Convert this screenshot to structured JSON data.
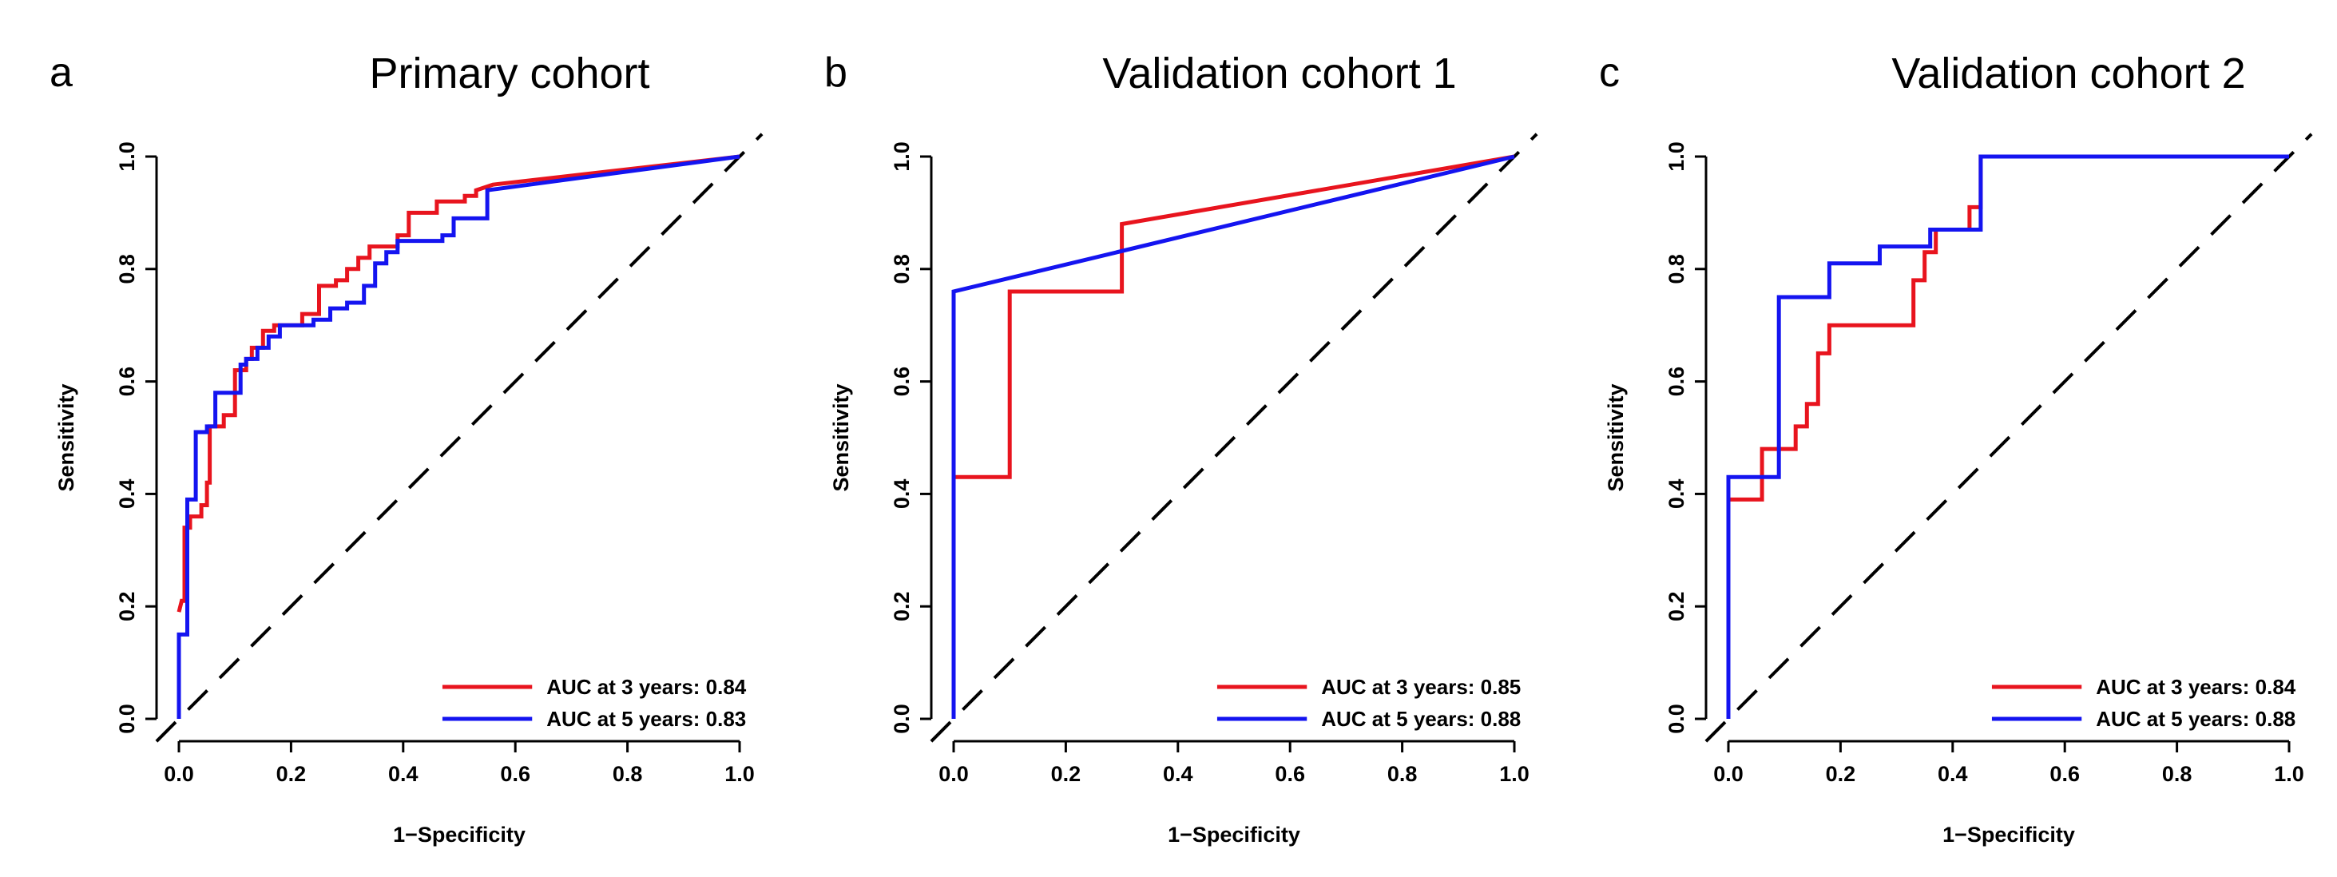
{
  "colors": {
    "red": "#e8141e",
    "blue": "#1414f0",
    "axis": "#000000",
    "diagonal": "#000000"
  },
  "chart_data": [
    {
      "type": "line",
      "panel_label": "a",
      "title": "Primary cohort",
      "xlabel": "1−Specificity",
      "ylabel": "Sensitivity",
      "xlim": [
        0,
        1
      ],
      "ylim": [
        0,
        1
      ],
      "x_ticks": [
        "0.0",
        "0.2",
        "0.4",
        "0.6",
        "0.8",
        "1.0"
      ],
      "y_ticks": [
        "0.0",
        "0.2",
        "0.4",
        "0.6",
        "0.8",
        "1.0"
      ],
      "legend_position": "bottom-right",
      "series": [
        {
          "name": "AUC at 3 years: 0.84",
          "color": "#e8141e",
          "points": [
            [
              0,
              0.19
            ],
            [
              0.005,
              0.21
            ],
            [
              0.01,
              0.21
            ],
            [
              0.01,
              0.34
            ],
            [
              0.02,
              0.34
            ],
            [
              0.02,
              0.36
            ],
            [
              0.04,
              0.36
            ],
            [
              0.04,
              0.38
            ],
            [
              0.05,
              0.38
            ],
            [
              0.05,
              0.42
            ],
            [
              0.055,
              0.42
            ],
            [
              0.055,
              0.52
            ],
            [
              0.08,
              0.52
            ],
            [
              0.08,
              0.54
            ],
            [
              0.1,
              0.54
            ],
            [
              0.1,
              0.62
            ],
            [
              0.12,
              0.62
            ],
            [
              0.12,
              0.64
            ],
            [
              0.13,
              0.64
            ],
            [
              0.13,
              0.66
            ],
            [
              0.15,
              0.66
            ],
            [
              0.15,
              0.69
            ],
            [
              0.17,
              0.69
            ],
            [
              0.17,
              0.7
            ],
            [
              0.22,
              0.7
            ],
            [
              0.22,
              0.72
            ],
            [
              0.25,
              0.72
            ],
            [
              0.25,
              0.77
            ],
            [
              0.28,
              0.77
            ],
            [
              0.28,
              0.78
            ],
            [
              0.3,
              0.78
            ],
            [
              0.3,
              0.8
            ],
            [
              0.32,
              0.8
            ],
            [
              0.32,
              0.82
            ],
            [
              0.34,
              0.82
            ],
            [
              0.34,
              0.84
            ],
            [
              0.39,
              0.84
            ],
            [
              0.39,
              0.86
            ],
            [
              0.41,
              0.86
            ],
            [
              0.41,
              0.9
            ],
            [
              0.46,
              0.9
            ],
            [
              0.46,
              0.92
            ],
            [
              0.51,
              0.92
            ],
            [
              0.51,
              0.93
            ],
            [
              0.53,
              0.93
            ],
            [
              0.53,
              0.94
            ],
            [
              0.56,
              0.95
            ],
            [
              1,
              1
            ]
          ]
        },
        {
          "name": "AUC at 5 years: 0.83",
          "color": "#1414f0",
          "points": [
            [
              0,
              0
            ],
            [
              0,
              0.15
            ],
            [
              0.015,
              0.15
            ],
            [
              0.015,
              0.39
            ],
            [
              0.03,
              0.39
            ],
            [
              0.03,
              0.51
            ],
            [
              0.05,
              0.51
            ],
            [
              0.05,
              0.52
            ],
            [
              0.065,
              0.52
            ],
            [
              0.065,
              0.58
            ],
            [
              0.11,
              0.58
            ],
            [
              0.11,
              0.63
            ],
            [
              0.12,
              0.63
            ],
            [
              0.12,
              0.64
            ],
            [
              0.14,
              0.64
            ],
            [
              0.14,
              0.66
            ],
            [
              0.16,
              0.66
            ],
            [
              0.16,
              0.68
            ],
            [
              0.18,
              0.68
            ],
            [
              0.18,
              0.7
            ],
            [
              0.24,
              0.7
            ],
            [
              0.24,
              0.71
            ],
            [
              0.27,
              0.71
            ],
            [
              0.27,
              0.73
            ],
            [
              0.3,
              0.73
            ],
            [
              0.3,
              0.74
            ],
            [
              0.33,
              0.74
            ],
            [
              0.33,
              0.77
            ],
            [
              0.35,
              0.77
            ],
            [
              0.35,
              0.81
            ],
            [
              0.37,
              0.81
            ],
            [
              0.37,
              0.83
            ],
            [
              0.39,
              0.83
            ],
            [
              0.39,
              0.85
            ],
            [
              0.47,
              0.85
            ],
            [
              0.47,
              0.86
            ],
            [
              0.49,
              0.86
            ],
            [
              0.49,
              0.89
            ],
            [
              0.55,
              0.89
            ],
            [
              0.55,
              0.94
            ],
            [
              1,
              1
            ]
          ]
        }
      ]
    },
    {
      "type": "line",
      "panel_label": "b",
      "title": "Validation cohort 1",
      "xlabel": "1−Specificity",
      "ylabel": "Sensitivity",
      "xlim": [
        0,
        1
      ],
      "ylim": [
        0,
        1
      ],
      "x_ticks": [
        "0.0",
        "0.2",
        "0.4",
        "0.6",
        "0.8",
        "1.0"
      ],
      "y_ticks": [
        "0.0",
        "0.2",
        "0.4",
        "0.6",
        "0.8",
        "1.0"
      ],
      "legend_position": "bottom-right",
      "series": [
        {
          "name": "AUC at 3 years: 0.85",
          "color": "#e8141e",
          "points": [
            [
              0,
              0.43
            ],
            [
              0.1,
              0.43
            ],
            [
              0.1,
              0.76
            ],
            [
              0.3,
              0.76
            ],
            [
              0.3,
              0.88
            ],
            [
              1,
              1
            ]
          ]
        },
        {
          "name": "AUC at 5 years: 0.88",
          "color": "#1414f0",
          "points": [
            [
              0,
              0
            ],
            [
              0,
              0.76
            ],
            [
              1,
              1
            ]
          ]
        }
      ]
    },
    {
      "type": "line",
      "panel_label": "c",
      "title": "Validation cohort 2",
      "xlabel": "1−Specificity",
      "ylabel": "Sensitivity",
      "xlim": [
        0,
        1
      ],
      "ylim": [
        0,
        1
      ],
      "x_ticks": [
        "0.0",
        "0.2",
        "0.4",
        "0.6",
        "0.8",
        "1.0"
      ],
      "y_ticks": [
        "0.0",
        "0.2",
        "0.4",
        "0.6",
        "0.8",
        "1.0"
      ],
      "legend_position": "bottom-right",
      "series": [
        {
          "name": "AUC at 3 years: 0.84",
          "color": "#e8141e",
          "points": [
            [
              0,
              0.39
            ],
            [
              0.06,
              0.39
            ],
            [
              0.06,
              0.48
            ],
            [
              0.12,
              0.48
            ],
            [
              0.12,
              0.52
            ],
            [
              0.14,
              0.52
            ],
            [
              0.14,
              0.56
            ],
            [
              0.16,
              0.56
            ],
            [
              0.16,
              0.65
            ],
            [
              0.18,
              0.65
            ],
            [
              0.18,
              0.7
            ],
            [
              0.33,
              0.7
            ],
            [
              0.33,
              0.78
            ],
            [
              0.35,
              0.78
            ],
            [
              0.35,
              0.83
            ],
            [
              0.37,
              0.83
            ],
            [
              0.37,
              0.87
            ],
            [
              0.43,
              0.87
            ],
            [
              0.43,
              0.91
            ],
            [
              0.45,
              0.91
            ],
            [
              0.45,
              1
            ],
            [
              1,
              1
            ]
          ]
        },
        {
          "name": "AUC at 5 years: 0.88",
          "color": "#1414f0",
          "points": [
            [
              0,
              0
            ],
            [
              0,
              0.43
            ],
            [
              0.09,
              0.43
            ],
            [
              0.09,
              0.75
            ],
            [
              0.18,
              0.75
            ],
            [
              0.18,
              0.81
            ],
            [
              0.27,
              0.81
            ],
            [
              0.27,
              0.84
            ],
            [
              0.36,
              0.84
            ],
            [
              0.36,
              0.87
            ],
            [
              0.45,
              0.87
            ],
            [
              0.45,
              1
            ],
            [
              1,
              1
            ]
          ]
        }
      ]
    }
  ]
}
